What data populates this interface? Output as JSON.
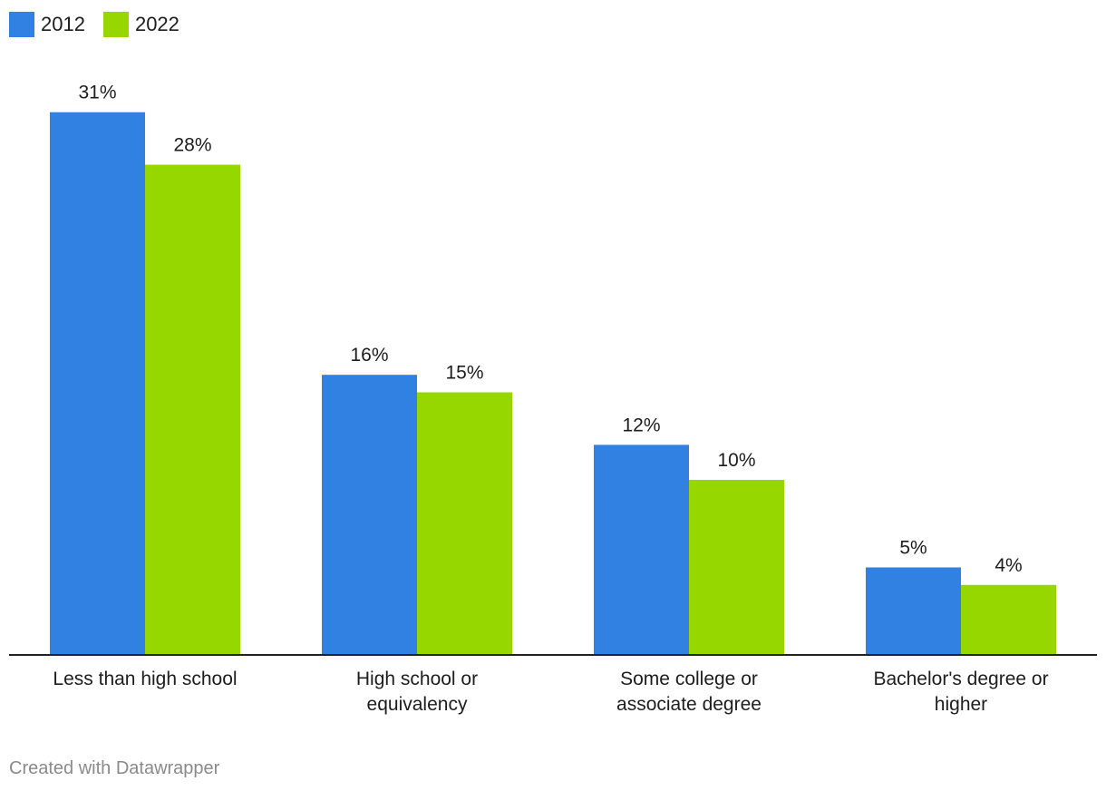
{
  "colors": {
    "series_2012": "#3081e2",
    "series_2022": "#97d700",
    "axis": "#222222",
    "footer_text": "#8a8a8a"
  },
  "legend": {
    "items": [
      {
        "label": "2012",
        "color": "#3081e2"
      },
      {
        "label": "2022",
        "color": "#97d700"
      }
    ]
  },
  "chart_data": {
    "type": "bar",
    "title": "",
    "xlabel": "",
    "ylabel": "",
    "ylim": [
      0,
      34
    ],
    "grid": false,
    "legend_position": "top-left",
    "categories": [
      [
        "Less than high school"
      ],
      [
        "High school or",
        "equivalency"
      ],
      [
        "Some college or",
        "associate degree"
      ],
      [
        "Bachelor's degree or",
        "higher"
      ]
    ],
    "series": [
      {
        "name": "2012",
        "color": "#3081e2",
        "values": [
          31,
          16,
          12,
          5
        ],
        "labels": [
          "31%",
          "16%",
          "12%",
          "5%"
        ]
      },
      {
        "name": "2022",
        "color": "#97d700",
        "values": [
          28,
          15,
          10,
          4
        ],
        "labels": [
          "28%",
          "15%",
          "10%",
          "4%"
        ]
      }
    ]
  },
  "footer": {
    "text": "Created with Datawrapper"
  }
}
